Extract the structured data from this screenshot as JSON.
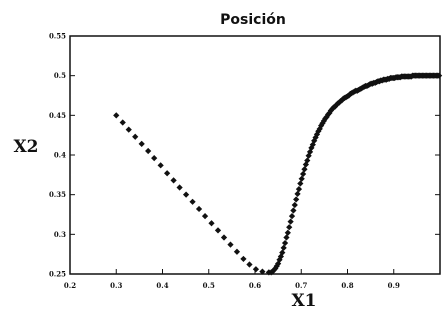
{
  "chart_data": {
    "type": "scatter",
    "title": "Posición",
    "xlabel": "X1",
    "ylabel": "X2",
    "xlim": [
      0.2,
      1.0
    ],
    "ylim": [
      0.25,
      0.55
    ],
    "x_ticks": [
      0.2,
      0.3,
      0.4,
      0.5,
      0.6,
      0.7,
      0.8,
      0.9
    ],
    "x_tick_labels": [
      "0.2",
      "0.3",
      "0.4",
      "0.5",
      "0.6",
      "0.7",
      "0.8",
      "0.9"
    ],
    "y_ticks": [
      0.25,
      0.3,
      0.35,
      0.4,
      0.45,
      0.5,
      0.55
    ],
    "y_tick_labels": [
      "0.25",
      "0.3",
      "0.35",
      "0.4",
      "0.45",
      "0.5",
      "0.55"
    ],
    "grid": false,
    "marker_color": "#111111",
    "series": [
      {
        "x": [
          0.3,
          0.314,
          0.327,
          0.341,
          0.355,
          0.369,
          0.382,
          0.396,
          0.41,
          0.424,
          0.437,
          0.451,
          0.465,
          0.479,
          0.492,
          0.506,
          0.52,
          0.533,
          0.547,
          0.561,
          0.575,
          0.588,
          0.602,
          0.616,
          0.63,
          0.635,
          0.638,
          0.641,
          0.644,
          0.647,
          0.65,
          0.653,
          0.656,
          0.659,
          0.662,
          0.665,
          0.668,
          0.671,
          0.674,
          0.677,
          0.68,
          0.683,
          0.686,
          0.689,
          0.692,
          0.695,
          0.698,
          0.701,
          0.704,
          0.707,
          0.71,
          0.713,
          0.716,
          0.719,
          0.722,
          0.725,
          0.728,
          0.731,
          0.734,
          0.737,
          0.74,
          0.743,
          0.746,
          0.749,
          0.752,
          0.755,
          0.758,
          0.761,
          0.764,
          0.767,
          0.77,
          0.773,
          0.776,
          0.779,
          0.782,
          0.785,
          0.788,
          0.791,
          0.794,
          0.797,
          0.8,
          0.803,
          0.806,
          0.809,
          0.812,
          0.815,
          0.818,
          0.821,
          0.824,
          0.827,
          0.83,
          0.833,
          0.836,
          0.839,
          0.842,
          0.845,
          0.848,
          0.851,
          0.854,
          0.857,
          0.86,
          0.863,
          0.866,
          0.869,
          0.872,
          0.875,
          0.878,
          0.881,
          0.884,
          0.887,
          0.89,
          0.893,
          0.896,
          0.899,
          0.902,
          0.905,
          0.908,
          0.911,
          0.914,
          0.917,
          0.92,
          0.923,
          0.926,
          0.929,
          0.932,
          0.935,
          0.938,
          0.941,
          0.944,
          0.947,
          0.95,
          0.953,
          0.956,
          0.959,
          0.962,
          0.965,
          0.968,
          0.971,
          0.974,
          0.977,
          0.98,
          0.983,
          0.986,
          0.989,
          0.992,
          0.995,
          0.998
        ],
        "y": [
          0.45,
          0.441,
          0.432,
          0.423,
          0.414,
          0.405,
          0.396,
          0.387,
          0.377,
          0.368,
          0.359,
          0.35,
          0.341,
          0.332,
          0.323,
          0.314,
          0.305,
          0.296,
          0.287,
          0.278,
          0.269,
          0.262,
          0.256,
          0.253,
          0.252,
          0.252,
          0.253,
          0.255,
          0.257,
          0.26,
          0.263,
          0.268,
          0.272,
          0.277,
          0.283,
          0.289,
          0.296,
          0.302,
          0.309,
          0.316,
          0.323,
          0.33,
          0.337,
          0.344,
          0.351,
          0.357,
          0.364,
          0.37,
          0.376,
          0.382,
          0.388,
          0.393,
          0.399,
          0.404,
          0.409,
          0.413,
          0.418,
          0.422,
          0.426,
          0.43,
          0.433,
          0.437,
          0.44,
          0.443,
          0.446,
          0.448,
          0.451,
          0.453,
          0.456,
          0.458,
          0.46,
          0.461,
          0.463,
          0.465,
          0.466,
          0.468,
          0.469,
          0.471,
          0.472,
          0.473,
          0.474,
          0.475,
          0.477,
          0.478,
          0.479,
          0.48,
          0.481,
          0.481,
          0.482,
          0.483,
          0.484,
          0.485,
          0.486,
          0.487,
          0.487,
          0.488,
          0.489,
          0.49,
          0.49,
          0.491,
          0.491,
          0.492,
          0.493,
          0.493,
          0.494,
          0.494,
          0.495,
          0.495,
          0.495,
          0.496,
          0.496,
          0.497,
          0.497,
          0.497,
          0.497,
          0.498,
          0.498,
          0.498,
          0.498,
          0.499,
          0.499,
          0.499,
          0.499,
          0.499,
          0.499,
          0.499,
          0.499,
          0.5,
          0.5,
          0.5,
          0.5,
          0.5,
          0.5,
          0.5,
          0.5,
          0.5,
          0.5,
          0.5,
          0.5,
          0.5,
          0.5,
          0.5,
          0.5,
          0.5,
          0.5,
          0.5,
          0.5
        ]
      }
    ]
  }
}
